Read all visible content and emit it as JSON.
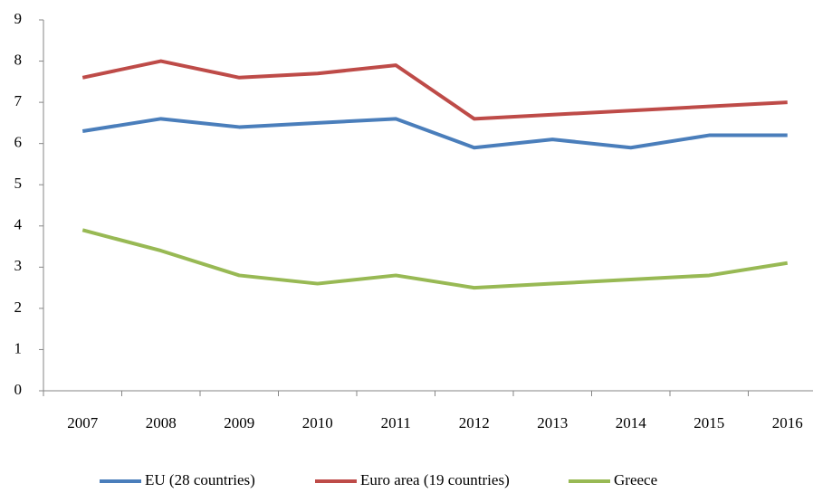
{
  "chart_data": {
    "type": "line",
    "categories": [
      "2007",
      "2008",
      "2009",
      "2010",
      "2011",
      "2012",
      "2013",
      "2014",
      "2015",
      "2016"
    ],
    "series": [
      {
        "name": "EU (28 countries)",
        "color": "#4a7ebb",
        "values": [
          6.3,
          6.6,
          6.4,
          6.5,
          6.6,
          5.9,
          6.1,
          5.9,
          6.2,
          6.2
        ]
      },
      {
        "name": "Euro area (19 countries)",
        "color": "#be4b48",
        "values": [
          7.6,
          8.0,
          7.6,
          7.7,
          7.9,
          6.6,
          6.7,
          6.8,
          6.9,
          7.0
        ]
      },
      {
        "name": "Greece",
        "color": "#98b954",
        "values": [
          3.9,
          3.4,
          2.8,
          2.6,
          2.8,
          2.5,
          2.6,
          2.7,
          2.8,
          3.1
        ]
      }
    ],
    "ylim": [
      0,
      9
    ],
    "yticks": [
      0,
      1,
      2,
      3,
      4,
      5,
      6,
      7,
      8,
      9
    ],
    "grid": false,
    "legend": "bottom"
  }
}
